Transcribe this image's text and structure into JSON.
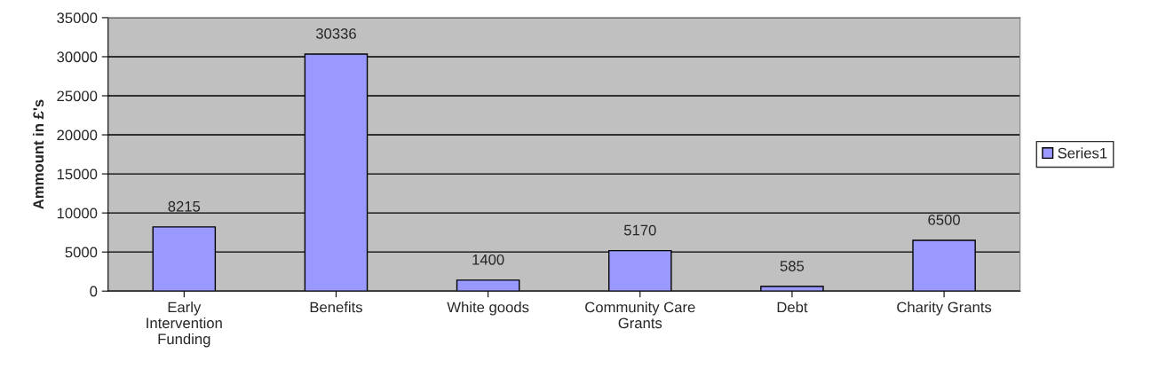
{
  "chart_data": {
    "type": "bar",
    "ylabel": "Ammount in £'s",
    "categories": [
      "Early\nIntervention\nFunding",
      "Benefits",
      "White goods",
      "Community Care\nGrants",
      "Debt",
      "Charity Grants"
    ],
    "series": [
      {
        "name": "Series1",
        "color": "#9999ff",
        "values": [
          8215,
          30336,
          1400,
          5170,
          585,
          6500
        ]
      }
    ],
    "ylim": [
      0,
      35000
    ],
    "yticks": [
      0,
      5000,
      10000,
      15000,
      20000,
      25000,
      30000,
      35000
    ],
    "grid": "y",
    "legend": "right",
    "data_labels": true
  }
}
